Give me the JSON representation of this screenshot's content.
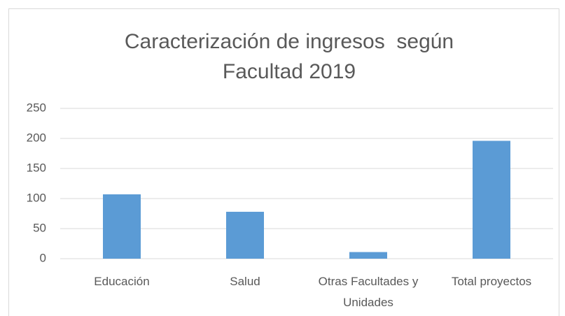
{
  "chart_data": {
    "type": "bar",
    "title": "Caracterización de ingresos  según Facultad 2019",
    "categories": [
      "Educación",
      "Salud",
      "Otras Facultades y Unidades",
      "Total proyectos"
    ],
    "values": [
      107,
      78,
      11,
      196
    ],
    "color": "#5b9bd5",
    "ylim": [
      0,
      250
    ],
    "yticks": [
      0,
      50,
      100,
      150,
      200,
      250
    ],
    "grid": true
  }
}
